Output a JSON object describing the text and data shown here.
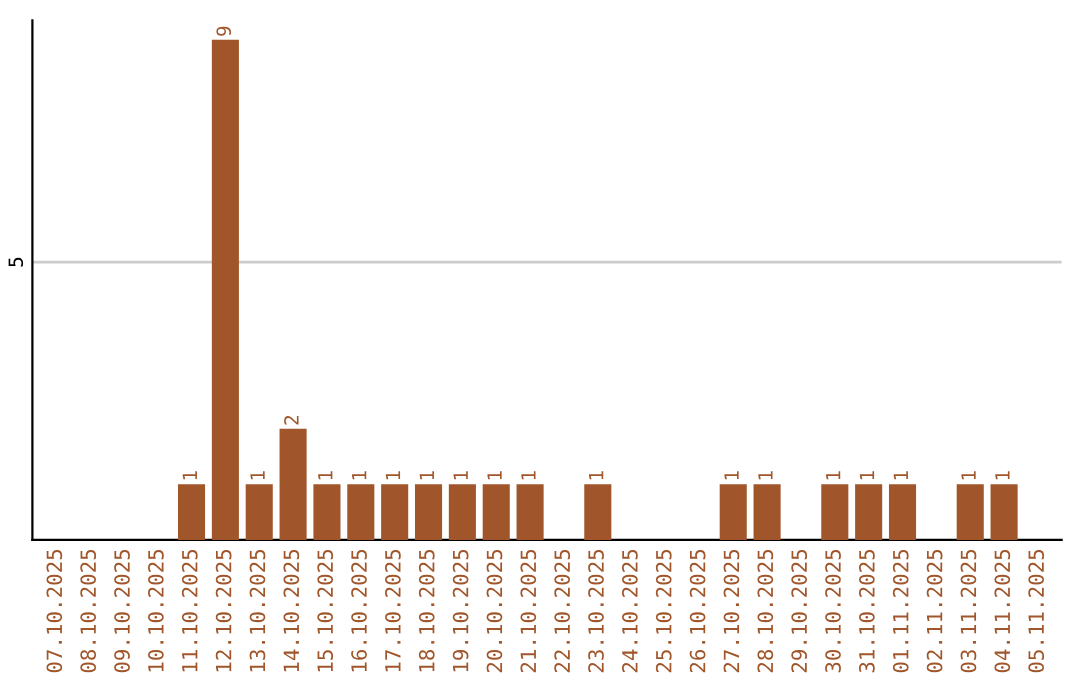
{
  "chart_data": {
    "type": "bar",
    "categories": [
      "07.10.2025",
      "08.10.2025",
      "09.10.2025",
      "10.10.2025",
      "11.10.2025",
      "12.10.2025",
      "13.10.2025",
      "14.10.2025",
      "15.10.2025",
      "16.10.2025",
      "17.10.2025",
      "18.10.2025",
      "19.10.2025",
      "20.10.2025",
      "21.10.2025",
      "22.10.2025",
      "23.10.2025",
      "24.10.2025",
      "25.10.2025",
      "26.10.2025",
      "27.10.2025",
      "28.10.2025",
      "29.10.2025",
      "30.10.2025",
      "31.10.2025",
      "01.11.2025",
      "02.11.2025",
      "03.11.2025",
      "04.11.2025",
      "05.11.2025"
    ],
    "values": [
      0,
      0,
      0,
      0,
      1,
      9,
      1,
      2,
      1,
      1,
      1,
      1,
      1,
      1,
      1,
      0,
      1,
      0,
      0,
      0,
      1,
      1,
      0,
      1,
      1,
      1,
      0,
      1,
      1,
      0
    ],
    "value_labels": [
      null,
      null,
      null,
      null,
      "1",
      "9",
      "1",
      "2",
      "1",
      "1",
      "1",
      "1",
      "1",
      "1",
      "1",
      null,
      "1",
      null,
      null,
      null,
      "1",
      "1",
      null,
      "1",
      "1",
      "1",
      null,
      "1",
      "1",
      null
    ],
    "color": "#a0562a",
    "ylim": [
      0,
      9.35
    ],
    "yticks": [
      5
    ],
    "grid": "y",
    "legend": false
  }
}
